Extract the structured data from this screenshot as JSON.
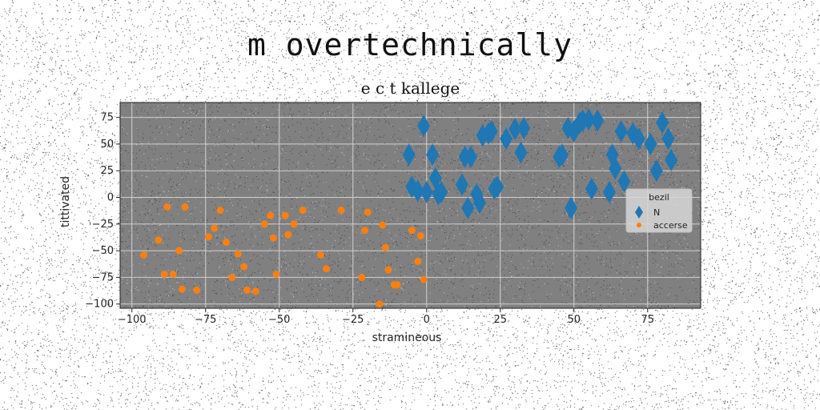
{
  "suptitle": "m overtechnically",
  "chart_data": {
    "type": "scatter",
    "title": "e c t kallege",
    "xlabel": "stramineous",
    "ylabel": "tittivated",
    "xlim": [
      -104,
      93
    ],
    "ylim": [
      -104,
      89
    ],
    "xticks": [
      -100,
      -75,
      -50,
      -25,
      0,
      25,
      50,
      75
    ],
    "yticks": [
      75,
      50,
      25,
      0,
      -25,
      -50,
      -75,
      -100
    ],
    "grid": true,
    "background": "#808080",
    "legend": {
      "title": "bezil",
      "placement": "center-right"
    },
    "series": [
      {
        "name": "N",
        "marker": "diamond",
        "color": "#1f77b4",
        "points": [
          [
            -6,
            40
          ],
          [
            -5,
            10
          ],
          [
            -3,
            6
          ],
          [
            -1,
            67
          ],
          [
            0,
            5
          ],
          [
            2,
            40
          ],
          [
            3,
            18
          ],
          [
            4,
            3
          ],
          [
            5,
            5
          ],
          [
            12,
            12
          ],
          [
            13,
            38
          ],
          [
            14,
            -10
          ],
          [
            15,
            38
          ],
          [
            17,
            3
          ],
          [
            18,
            -5
          ],
          [
            19,
            58
          ],
          [
            21,
            60
          ],
          [
            22,
            62
          ],
          [
            23,
            8
          ],
          [
            24,
            10
          ],
          [
            27,
            55
          ],
          [
            30,
            64
          ],
          [
            32,
            42
          ],
          [
            33,
            65
          ],
          [
            45,
            38
          ],
          [
            46,
            40
          ],
          [
            48,
            65
          ],
          [
            49,
            -10
          ],
          [
            50,
            62
          ],
          [
            52,
            70
          ],
          [
            53,
            72
          ],
          [
            55,
            73
          ],
          [
            56,
            8
          ],
          [
            58,
            72
          ],
          [
            62,
            5
          ],
          [
            63,
            40
          ],
          [
            64,
            27
          ],
          [
            66,
            62
          ],
          [
            67,
            15
          ],
          [
            70,
            60
          ],
          [
            72,
            55
          ],
          [
            76,
            50
          ],
          [
            78,
            25
          ],
          [
            80,
            70
          ],
          [
            82,
            55
          ],
          [
            83,
            35
          ]
        ]
      },
      {
        "name": "accerse",
        "marker": "circle",
        "color": "#ff7f0e",
        "points": [
          [
            -96,
            -54
          ],
          [
            -91,
            -40
          ],
          [
            -89,
            -72
          ],
          [
            -88,
            -9
          ],
          [
            -86,
            -72
          ],
          [
            -84,
            -50
          ],
          [
            -83,
            -86
          ],
          [
            -82,
            -9
          ],
          [
            -78,
            -87
          ],
          [
            -74,
            -37
          ],
          [
            -72,
            -29
          ],
          [
            -70,
            -12
          ],
          [
            -68,
            -42
          ],
          [
            -66,
            -75
          ],
          [
            -64,
            -53
          ],
          [
            -62,
            -65
          ],
          [
            -61,
            -87
          ],
          [
            -58,
            -88
          ],
          [
            -55,
            -25
          ],
          [
            -53,
            -17
          ],
          [
            -52,
            -38
          ],
          [
            -51,
            -72
          ],
          [
            -48,
            -17
          ],
          [
            -47,
            -35
          ],
          [
            -45,
            -25
          ],
          [
            -42,
            -12
          ],
          [
            -36,
            -54
          ],
          [
            -34,
            -67
          ],
          [
            -29,
            -12
          ],
          [
            -22,
            -75
          ],
          [
            -21,
            -31
          ],
          [
            -20,
            -14
          ],
          [
            -16,
            -100
          ],
          [
            -15,
            -26
          ],
          [
            -14,
            -47
          ],
          [
            -13,
            -68
          ],
          [
            -11,
            -82
          ],
          [
            -10,
            -82
          ],
          [
            -5,
            -31
          ],
          [
            -3,
            -60
          ],
          [
            -2,
            -36
          ],
          [
            -1,
            -77
          ]
        ]
      }
    ]
  }
}
